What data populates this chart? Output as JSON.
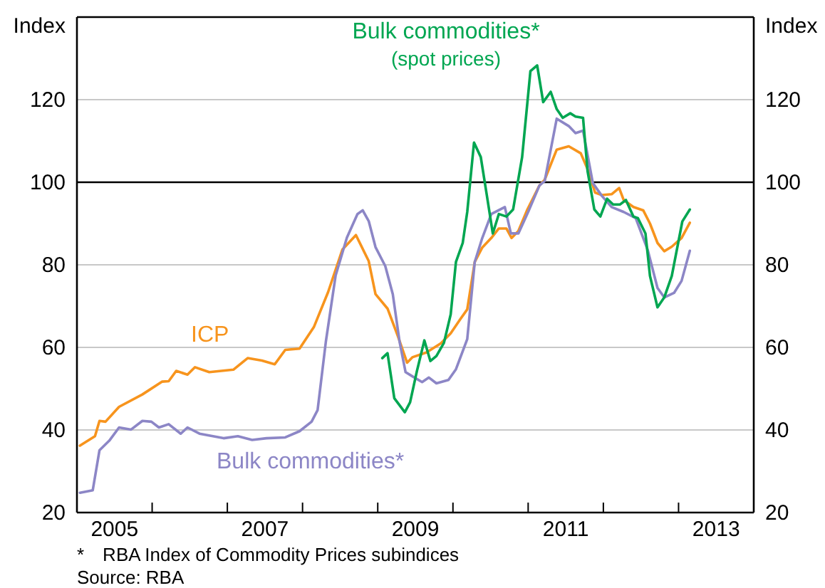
{
  "chart_data": {
    "type": "line",
    "xlabel": null,
    "ylabel": "Index",
    "y2label": "Index",
    "xlim": [
      2005,
      2014
    ],
    "ylim": [
      20,
      140
    ],
    "y2lim": [
      20,
      140
    ],
    "xticks": [
      {
        "value": 2005.5,
        "label": "2005"
      },
      {
        "value": 2006,
        "label": null
      },
      {
        "value": 2007,
        "label": null
      },
      {
        "value": 2007.5,
        "label": "2007"
      },
      {
        "value": 2008,
        "label": null
      },
      {
        "value": 2009,
        "label": null
      },
      {
        "value": 2009.5,
        "label": "2009"
      },
      {
        "value": 2010,
        "label": null
      },
      {
        "value": 2011,
        "label": null
      },
      {
        "value": 2011.5,
        "label": "2011"
      },
      {
        "value": 2012,
        "label": null
      },
      {
        "value": 2013,
        "label": null
      },
      {
        "value": 2013.5,
        "label": "2013"
      }
    ],
    "yticks": [
      20,
      40,
      60,
      80,
      100,
      120,
      {
        "value": 140,
        "label": null
      }
    ],
    "y2ticks": [
      20,
      40,
      60,
      80,
      100,
      120
    ],
    "grid": "y",
    "legend": false,
    "ref_lines": [
      {
        "axis": "y",
        "value": 100,
        "label": null,
        "color": "#000000"
      }
    ],
    "series": [
      {
        "name": "ICP",
        "color": "#f7941d",
        "x": [
          2005.04,
          2005.24,
          2005.3,
          2005.38,
          2005.56,
          2005.87,
          2006.13,
          2006.22,
          2006.32,
          2006.47,
          2006.57,
          2006.76,
          2007.08,
          2007.27,
          2007.46,
          2007.63,
          2007.77,
          2007.96,
          2008.15,
          2008.34,
          2008.53,
          2008.71,
          2008.88,
          2008.97,
          2009.13,
          2009.27,
          2009.39,
          2009.46,
          2009.65,
          2009.84,
          2009.97,
          2010.1,
          2010.19,
          2010.29,
          2010.39,
          2010.51,
          2010.61,
          2010.71,
          2010.78,
          2010.87,
          2010.99,
          2011.15,
          2011.22,
          2011.38,
          2011.54,
          2011.7,
          2011.79,
          2011.89,
          2011.98,
          2012.11,
          2012.21,
          2012.27,
          2012.4,
          2012.53,
          2012.62,
          2012.72,
          2012.81,
          2012.91,
          2013.04,
          2013.15
        ],
        "values": [
          36.2,
          38.5,
          42.2,
          42,
          45.6,
          48.6,
          51.7,
          51.8,
          54.3,
          53.4,
          55.2,
          54,
          54.6,
          57.4,
          56.8,
          55.9,
          59.4,
          59.7,
          64.9,
          73.4,
          83.7,
          87.2,
          80.9,
          72.9,
          69.4,
          62.6,
          56.3,
          57.6,
          58.8,
          61,
          63.4,
          66.9,
          69.2,
          80.7,
          84.2,
          86.5,
          88.8,
          88.8,
          86.5,
          88.2,
          93.4,
          99.2,
          100.6,
          107.9,
          108.7,
          107,
          103.2,
          97.5,
          96.9,
          97.1,
          98.6,
          95.7,
          94,
          93.2,
          90,
          85.3,
          83.3,
          84.4,
          86.5,
          90.2
        ]
      },
      {
        "name": "Bulk commodities*",
        "color": "#8c86c6",
        "x": [
          2005.04,
          2005.21,
          2005.3,
          2005.43,
          2005.56,
          2005.72,
          2005.87,
          2005.99,
          2006.09,
          2006.22,
          2006.38,
          2006.47,
          2006.63,
          2006.95,
          2007.14,
          2007.33,
          2007.52,
          2007.77,
          2007.96,
          2008.12,
          2008.2,
          2008.31,
          2008.44,
          2008.59,
          2008.73,
          2008.8,
          2008.88,
          2008.97,
          2009.1,
          2009.2,
          2009.29,
          2009.37,
          2009.46,
          2009.59,
          2009.68,
          2009.78,
          2009.94,
          2010.04,
          2010.19,
          2010.29,
          2010.39,
          2010.51,
          2010.69,
          2010.77,
          2010.87,
          2011.0,
          2011.15,
          2011.22,
          2011.38,
          2011.54,
          2011.63,
          2011.73,
          2011.86,
          2011.98,
          2012.11,
          2012.27,
          2012.43,
          2012.59,
          2012.72,
          2012.81,
          2012.94,
          2013.04,
          2013.15
        ],
        "values": [
          24.8,
          25.4,
          35.1,
          37.4,
          40.6,
          40.1,
          42.2,
          42,
          40.6,
          41.4,
          39.1,
          40.6,
          39.1,
          38,
          38.5,
          37.6,
          38,
          38.2,
          39.7,
          42,
          44.8,
          61.4,
          77.4,
          86.6,
          92.3,
          93.2,
          90.6,
          84.3,
          79.7,
          72.9,
          61.4,
          54,
          53,
          51.6,
          52.7,
          51.3,
          52.1,
          54.7,
          62,
          80.7,
          86.5,
          92.3,
          94,
          87.6,
          87.6,
          92.8,
          99.2,
          100.3,
          115.4,
          113.6,
          111.9,
          112.5,
          99.8,
          96.7,
          94,
          92.8,
          91.3,
          83.6,
          74.4,
          72.1,
          73.2,
          76.1,
          83.4
        ]
      },
      {
        "name": "Bulk commodities*\n(spot prices)",
        "color": "#00a651",
        "x": [
          2009.06,
          2009.13,
          2009.22,
          2009.36,
          2009.43,
          2009.52,
          2009.62,
          2009.7,
          2009.78,
          2009.88,
          2009.97,
          2010.04,
          2010.13,
          2010.19,
          2010.28,
          2010.37,
          2010.45,
          2010.53,
          2010.61,
          2010.71,
          2010.8,
          2010.92,
          2011.03,
          2011.12,
          2011.2,
          2011.3,
          2011.38,
          2011.46,
          2011.56,
          2011.63,
          2011.73,
          2011.79,
          2011.88,
          2011.96,
          2012.05,
          2012.13,
          2012.22,
          2012.3,
          2012.4,
          2012.46,
          2012.56,
          2012.62,
          2012.72,
          2012.81,
          2012.91,
          2013.05,
          2013.15
        ],
        "values": [
          57.4,
          58.6,
          47.7,
          44.3,
          46.7,
          54.2,
          61.7,
          56.7,
          57.9,
          61.1,
          68,
          80.7,
          85.3,
          92.8,
          109.6,
          106.1,
          96.9,
          87.6,
          92.3,
          91.7,
          93.4,
          106.1,
          126.9,
          128.3,
          119.4,
          121.9,
          117.7,
          115.6,
          116.7,
          115.9,
          115.6,
          102.7,
          93.4,
          91.7,
          96,
          94.6,
          94.6,
          95.7,
          91.7,
          91.3,
          87.6,
          77.3,
          69.7,
          72.1,
          77.3,
          90.5,
          93.4
        ]
      }
    ],
    "annotations": [
      "* RBA Index of Commodity Prices subindices",
      "Source: RBA"
    ]
  }
}
